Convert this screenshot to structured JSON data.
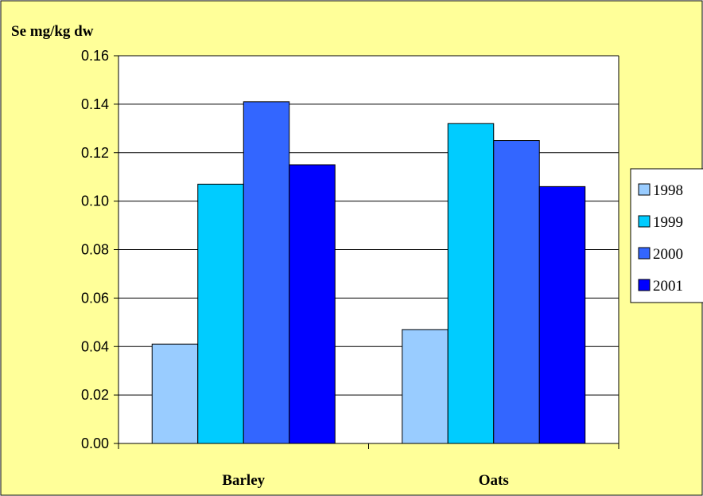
{
  "chart_data": {
    "type": "bar",
    "title": "",
    "xlabel": "",
    "ylabel": "Se mg/kg dw",
    "categories": [
      "Barley",
      "Oats"
    ],
    "series": [
      {
        "name": "1998",
        "values": [
          0.041,
          0.047
        ],
        "color": "#99ccff"
      },
      {
        "name": "1999",
        "values": [
          0.107,
          0.132
        ],
        "color": "#00ccff"
      },
      {
        "name": "2000",
        "values": [
          0.141,
          0.125
        ],
        "color": "#3366ff"
      },
      {
        "name": "2001",
        "values": [
          0.115,
          0.106
        ],
        "color": "#0000ff"
      }
    ],
    "ylim": [
      0,
      0.16
    ],
    "yticks": [
      "0.00",
      "0.02",
      "0.04",
      "0.06",
      "0.08",
      "0.10",
      "0.12",
      "0.14",
      "0.16"
    ],
    "grid": true,
    "legend_position": "right",
    "background_color": "#ffff99",
    "plot_background_color": "#ffffff"
  }
}
